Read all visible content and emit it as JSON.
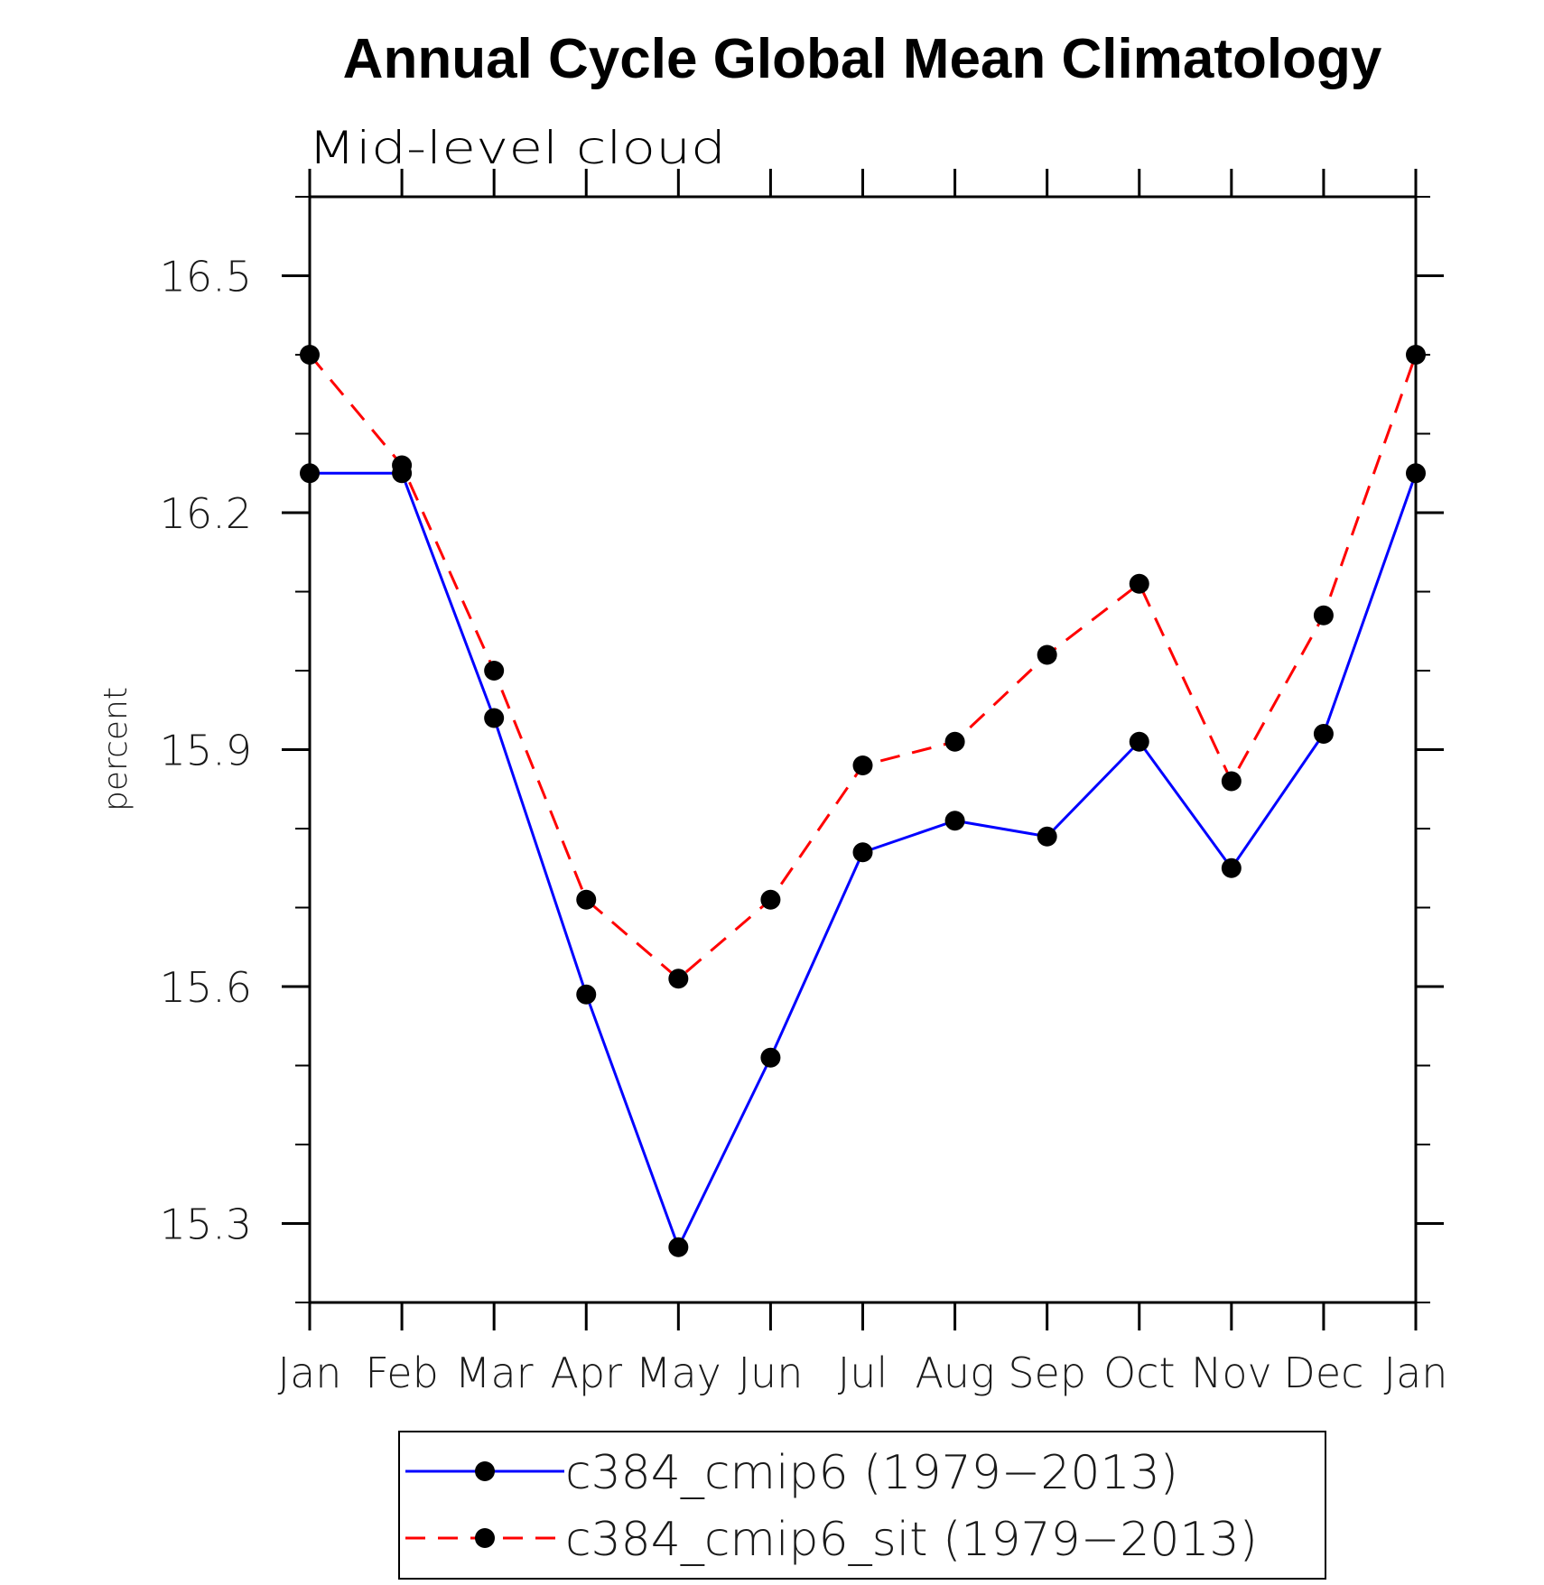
{
  "chart_data": {
    "type": "line",
    "title": "Annual Cycle Global Mean Climatology",
    "subtitle": "Mid-level cloud",
    "xlabel": "",
    "ylabel": "percent",
    "categories": [
      "Jan",
      "Feb",
      "Mar",
      "Apr",
      "May",
      "Jun",
      "Jul",
      "Aug",
      "Sep",
      "Oct",
      "Nov",
      "Dec",
      "Jan"
    ],
    "ylim": [
      15.2,
      16.6
    ],
    "y_major_ticks": [
      15.3,
      15.6,
      15.9,
      16.2,
      16.5
    ],
    "y_tick_labels": [
      "15.3",
      "15.6",
      "15.9",
      "16.2",
      "16.5"
    ],
    "y_minor_step": 0.1,
    "grid": false,
    "legend_position": "bottom-center",
    "series": [
      {
        "name": "c384_cmip6 (1979−2013)",
        "color": "#0000ff",
        "line_style": "solid",
        "marker": "filled-circle",
        "marker_color": "#000000",
        "values": [
          16.25,
          16.25,
          15.94,
          15.59,
          15.27,
          15.51,
          15.77,
          15.81,
          15.79,
          15.91,
          15.75,
          15.92,
          16.25
        ]
      },
      {
        "name": "c384_cmip6_sit (1979−2013)",
        "color": "#ff0000",
        "line_style": "dashed",
        "marker": "filled-circle",
        "marker_color": "#000000",
        "values": [
          16.4,
          16.26,
          16.0,
          15.71,
          15.61,
          15.71,
          15.88,
          15.91,
          16.02,
          16.11,
          15.86,
          16.07,
          16.4
        ]
      }
    ]
  }
}
